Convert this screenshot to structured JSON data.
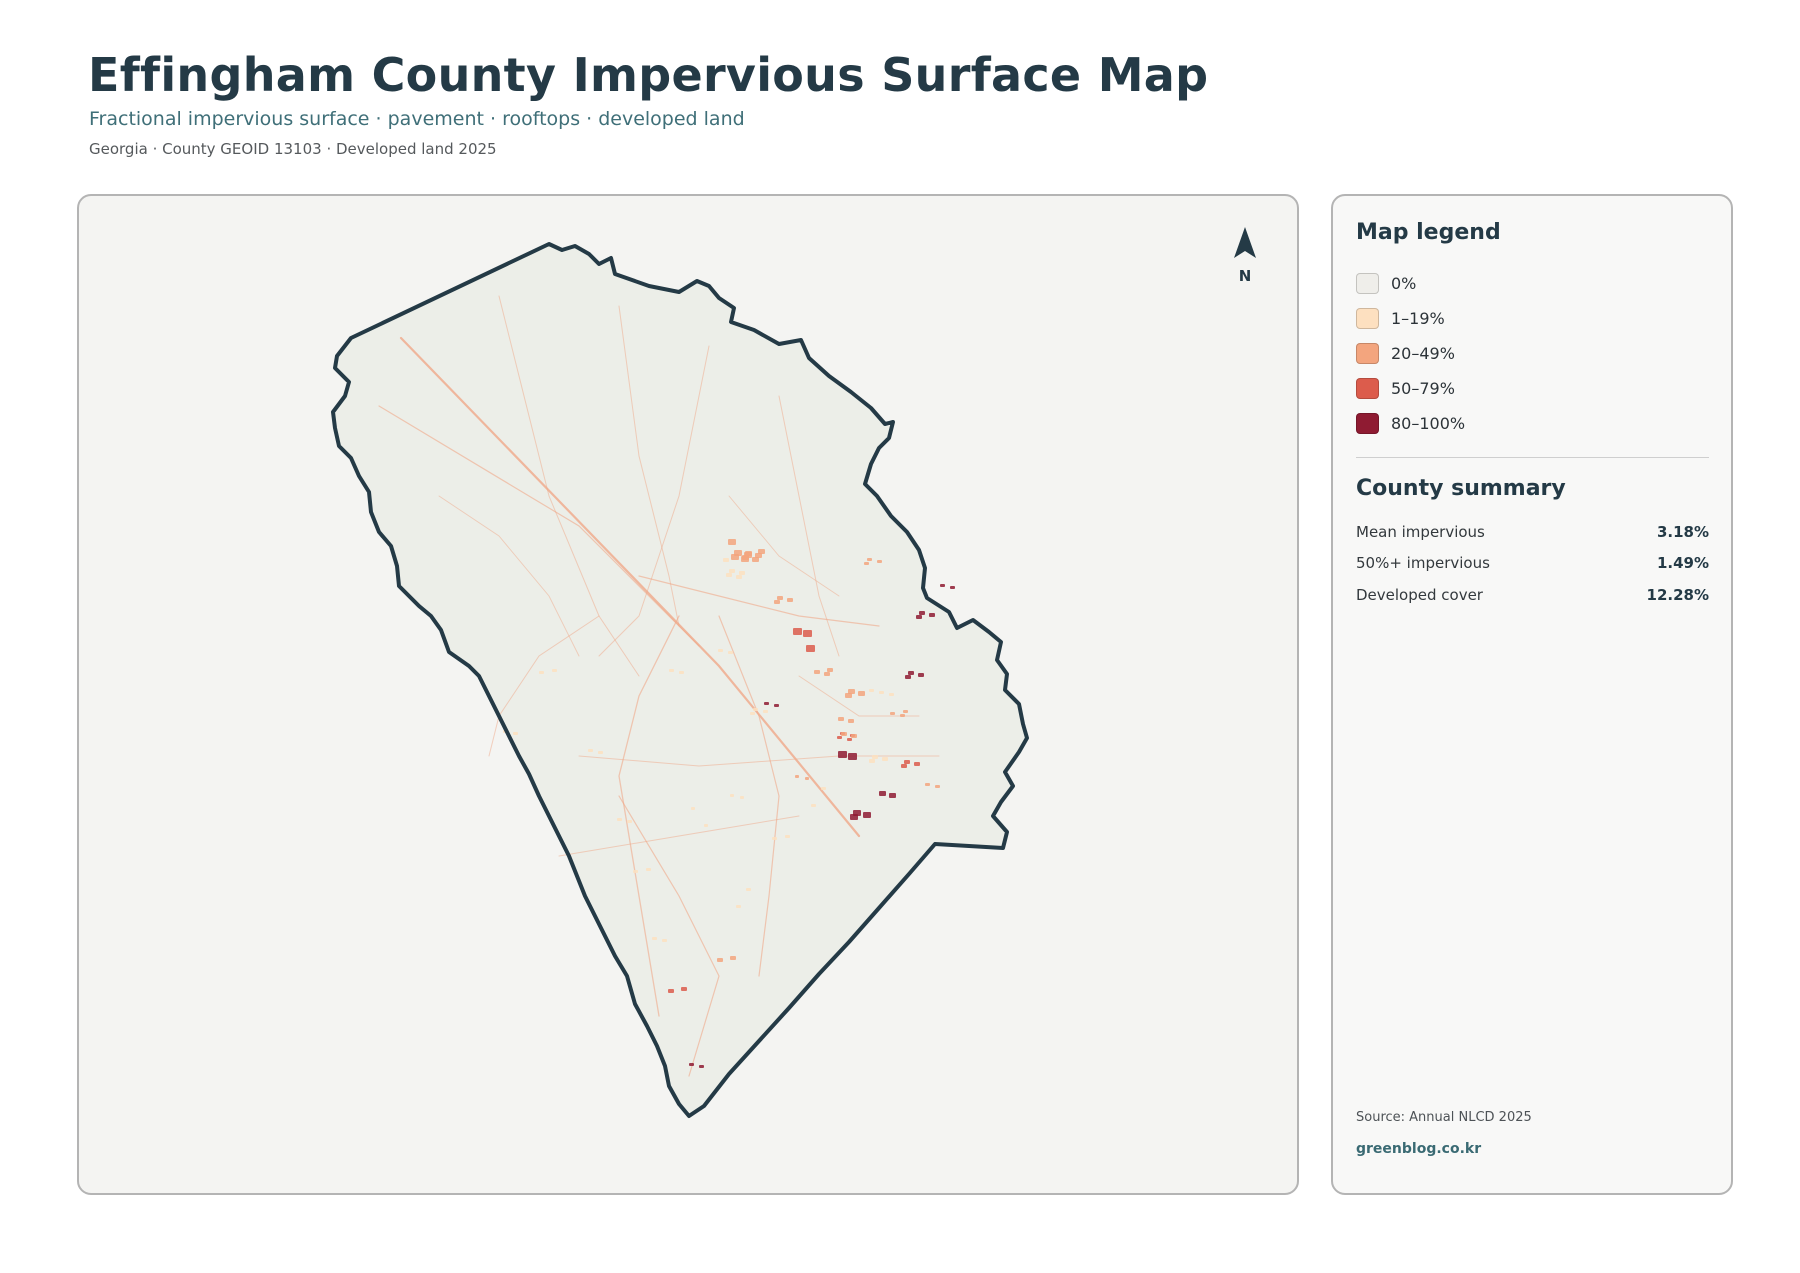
{
  "header": {
    "title": "Effingham County Impervious Surface Map",
    "subtitle": "Fractional impervious surface · pavement · rooftops · developed land",
    "meta": "Georgia · County GEOID 13103 · Developed land 2025"
  },
  "map": {
    "north_label": "N",
    "colors": {
      "county_fill": "#eceee8",
      "outline": "#243a46",
      "road": "#f0a888"
    }
  },
  "legend": {
    "heading": "Map legend",
    "items": [
      {
        "label": "0%",
        "color": "#efeeea"
      },
      {
        "label": "1–19%",
        "color": "#fde0c0"
      },
      {
        "label": "20–49%",
        "color": "#f3a57e"
      },
      {
        "label": "50–79%",
        "color": "#dc5c4c"
      },
      {
        "label": "80–100%",
        "color": "#8f1b32"
      }
    ]
  },
  "summary": {
    "heading": "County summary",
    "rows": [
      {
        "label": "Mean impervious",
        "value": "3.18%"
      },
      {
        "label": "50%+ impervious",
        "value": "1.49%"
      },
      {
        "label": "Developed cover",
        "value": "12.28%"
      }
    ]
  },
  "footer": {
    "source": "Source: Annual NLCD 2025",
    "brand": "greenblog.co.kr"
  }
}
